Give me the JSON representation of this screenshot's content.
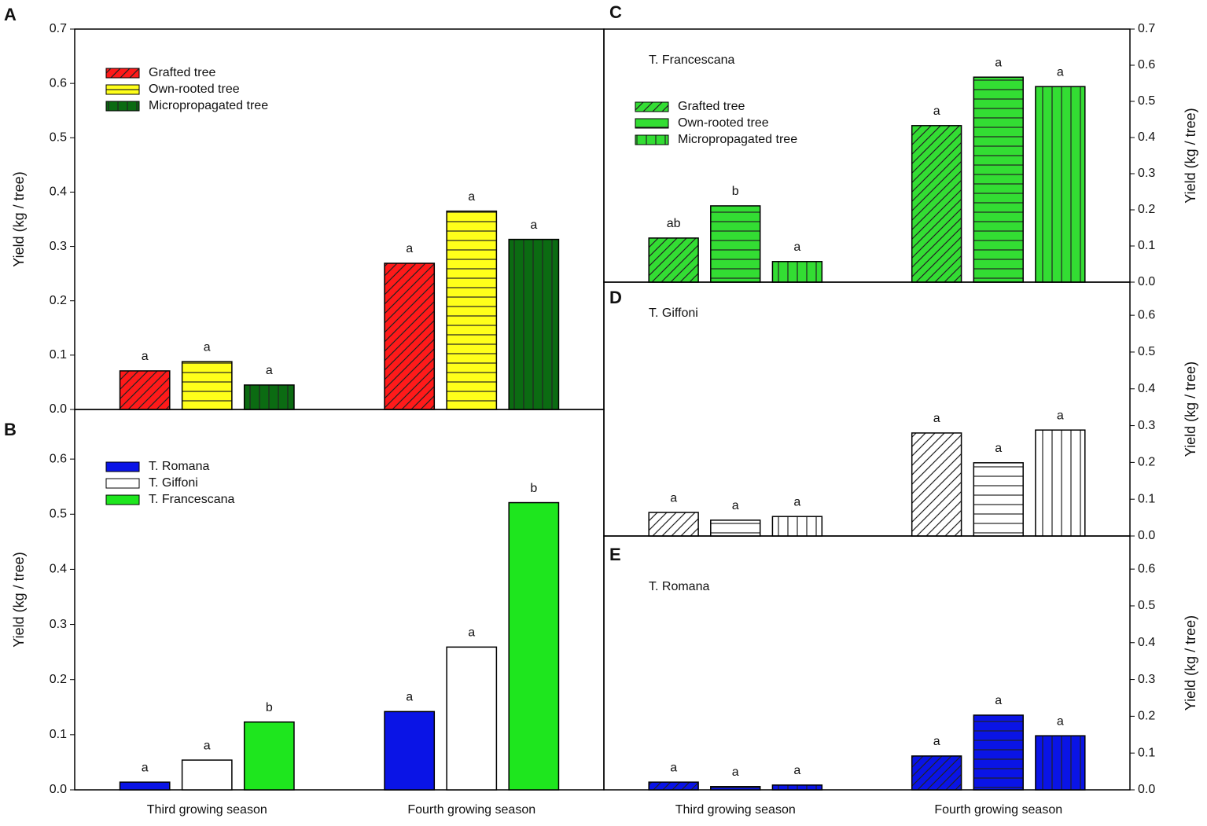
{
  "chart_data": [
    {
      "type": "bar",
      "panel_label": "A",
      "ylabel": "Yield (kg / tree)",
      "categories": [
        null,
        null
      ],
      "ylim": [
        0,
        0.7
      ],
      "yticks": [
        {
          "value": 0,
          "label": "0.0"
        },
        0.1,
        0.2,
        0.3,
        0.4,
        0.5,
        0.6,
        0.7
      ],
      "y_axis_side": "left",
      "series": [
        {
          "name": "Grafted tree",
          "color": "#ff1a1a",
          "pattern": "diagonal",
          "values": [
            0.071,
            0.269
          ],
          "letters": [
            "a",
            "a"
          ]
        },
        {
          "name": "Own-rooted tree",
          "color": "#ffff1a",
          "pattern": "horizontal",
          "values": [
            0.088,
            0.365
          ],
          "letters": [
            "a",
            "a"
          ]
        },
        {
          "name": "Micropropagated tree",
          "color": "#0b6b12",
          "pattern": "vertical",
          "values": [
            0.045,
            0.313
          ],
          "letters": [
            "a",
            "a"
          ]
        }
      ]
    },
    {
      "type": "bar",
      "panel_label": "B",
      "ylabel": "Yield (kg / tree)",
      "categories": [
        "Third growing season",
        "Fourth growing season"
      ],
      "ylim": [
        0,
        0.69
      ],
      "yticks": [
        {
          "value": 0,
          "label": "0.0"
        },
        0.1,
        0.2,
        0.3,
        0.4,
        0.5,
        0.6
      ],
      "y_axis_side": "left",
      "series": [
        {
          "name": "T. Romana",
          "color": "#0a14e6",
          "pattern": "solid",
          "values": [
            0.014,
            0.142
          ],
          "letters": [
            "a",
            "a"
          ]
        },
        {
          "name": "T. Giffoni",
          "color": "#ffffff",
          "pattern": "solid",
          "values": [
            0.054,
            0.259
          ],
          "letters": [
            "a",
            "a"
          ]
        },
        {
          "name": "T. Francescana",
          "color": "#1ee61e",
          "pattern": "solid",
          "values": [
            0.123,
            0.521
          ],
          "letters": [
            "b",
            "b"
          ]
        }
      ]
    },
    {
      "type": "bar",
      "panel_label": "C",
      "title": "T. Francescana",
      "ylabel": "Yield (kg / tree)",
      "categories": [
        null,
        null
      ],
      "ylim": [
        0,
        0.7
      ],
      "yticks": [
        {
          "value": 0,
          "label": "0.0"
        },
        0.1,
        0.2,
        0.3,
        0.4,
        0.5,
        0.6,
        0.7
      ],
      "y_axis_side": "right",
      "series": [
        {
          "name": "Grafted tree",
          "color": "#33dd33",
          "pattern": "diagonal",
          "values": [
            0.122,
            0.433
          ],
          "letters": [
            "ab",
            "a"
          ]
        },
        {
          "name": "Own-rooted tree",
          "color": "#33dd33",
          "pattern": "horizontal",
          "values": [
            0.211,
            0.567
          ],
          "letters": [
            "b",
            "a"
          ]
        },
        {
          "name": "Micropropagated tree",
          "color": "#33dd33",
          "pattern": "vertical",
          "values": [
            0.057,
            0.541
          ],
          "letters": [
            "a",
            "a"
          ]
        }
      ]
    },
    {
      "type": "bar",
      "panel_label": "D",
      "title": "T. Giffoni",
      "ylabel": "Yield (kg / tree)",
      "categories": [
        null,
        null
      ],
      "ylim": [
        0,
        0.69
      ],
      "yticks": [
        {
          "value": 0,
          "label": "0.0"
        },
        0.1,
        0.2,
        0.3,
        0.4,
        0.5,
        0.6
      ],
      "y_axis_side": "right",
      "series": [
        {
          "color": "#ffffff",
          "pattern": "diagonal",
          "values": [
            0.064,
            0.28
          ],
          "letters": [
            "a",
            "a"
          ]
        },
        {
          "color": "#ffffff",
          "pattern": "horizontal",
          "values": [
            0.043,
            0.199
          ],
          "letters": [
            "a",
            "a"
          ]
        },
        {
          "color": "#ffffff",
          "pattern": "vertical",
          "values": [
            0.053,
            0.288
          ],
          "letters": [
            "a",
            "a"
          ]
        }
      ]
    },
    {
      "type": "bar",
      "panel_label": "E",
      "title": "T. Romana",
      "ylabel": "Yield (kg / tree)",
      "categories": [
        "Third growing season",
        "Fourth growing season"
      ],
      "ylim": [
        0,
        0.69
      ],
      "yticks": [
        {
          "value": 0,
          "label": "0.0"
        },
        0.1,
        0.2,
        0.3,
        0.4,
        0.5,
        0.6
      ],
      "y_axis_side": "right",
      "series": [
        {
          "color": "#0a14e6",
          "pattern": "diagonal",
          "values": [
            0.021,
            0.092
          ],
          "letters": [
            "a",
            "a"
          ]
        },
        {
          "color": "#0a14e6",
          "pattern": "horizontal",
          "values": [
            0.009,
            0.203
          ],
          "letters": [
            "a",
            "a"
          ]
        },
        {
          "color": "#0a14e6",
          "pattern": "vertical",
          "values": [
            0.013,
            0.147
          ],
          "letters": [
            "a",
            "a"
          ]
        }
      ]
    }
  ]
}
